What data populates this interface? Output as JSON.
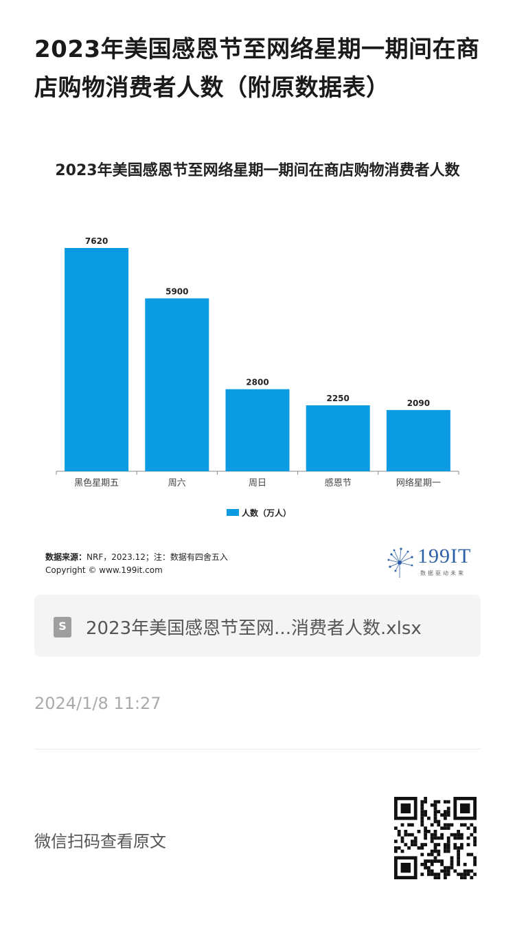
{
  "article": {
    "title": "2023年美国感恩节至网络星期一期间在商店购物消费者人数（附原数据表）",
    "date": "2024/1/8 11:27",
    "scan_text": "微信扫码查看原文"
  },
  "attachment": {
    "icon": "spreadsheet-file-icon",
    "name": "2023年美国感恩节至网...消费者人数.xlsx"
  },
  "footer": {
    "source_label": "数据来源：",
    "source_text": "NRF，2023.12；注：数据有四舍五入",
    "copyright": "Copyright © www.199it.com",
    "logo_text": "199IT",
    "logo_sub": "数据驱动未来"
  },
  "colors": {
    "bar": "#0a9be3",
    "axis": "#888888"
  },
  "chart_data": {
    "type": "bar",
    "title": "2023年美国感恩节至网络星期一期间在商店购物消费者人数",
    "categories": [
      "黑色星期五",
      "周六",
      "周日",
      "感恩节",
      "网络星期一"
    ],
    "series": [
      {
        "name": "人数（万人）",
        "values": [
          7620,
          5900,
          2800,
          2250,
          2090
        ]
      }
    ],
    "ylim": [
      0,
      7620
    ],
    "grid": false,
    "legend": "bottom-center",
    "xlabel": "",
    "ylabel": ""
  }
}
